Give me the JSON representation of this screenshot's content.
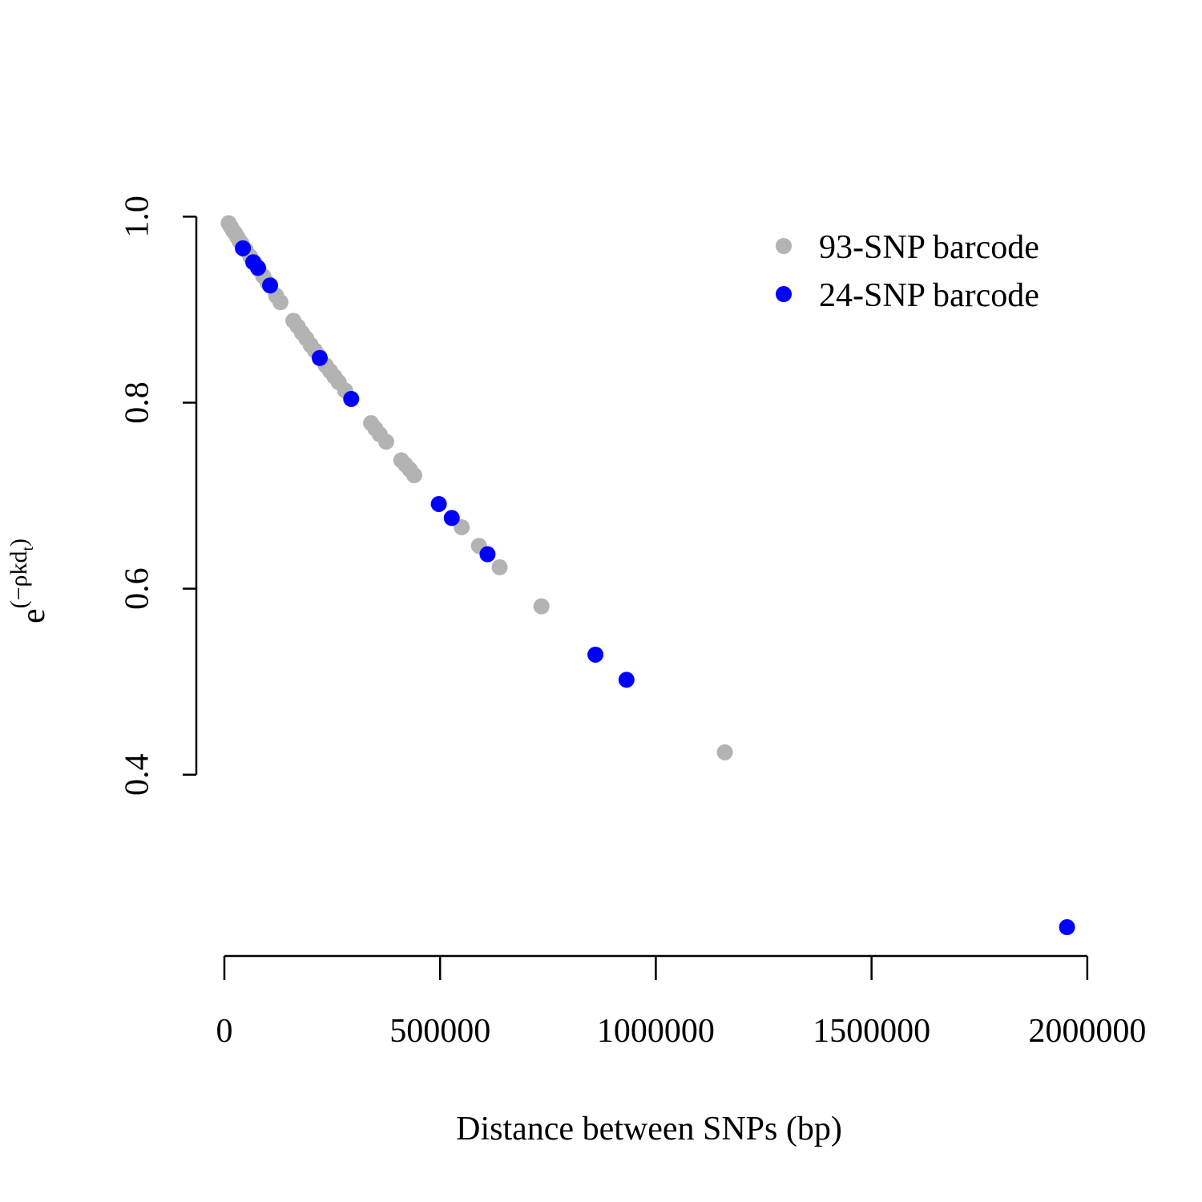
{
  "chart_data": {
    "type": "scatter",
    "y_label": [
      "e",
      "(−ρkd",
      "t",
      ")"
    ],
    "x_label": "Distance between SNPs (bp)",
    "xlim": [
      -65000,
      2030000
    ],
    "ylim": [
      0.205,
      1.021
    ],
    "xticks": [
      0,
      500000,
      1000000,
      1500000,
      2000000
    ],
    "yticks": [
      0.4,
      0.6,
      0.8,
      {
        "value": 1,
        "label": "1.0"
      }
    ],
    "legend": "topright",
    "series": [
      {
        "name": "93-SNP barcode",
        "color": "#b3b3b3",
        "x": [
          10000,
          15000,
          20000,
          25000,
          30000,
          35000,
          40000,
          50000,
          60000,
          70000,
          80000,
          90000,
          100000,
          120000,
          130000,
          160000,
          170000,
          180000,
          190000,
          200000,
          210000,
          220000,
          235000,
          245000,
          255000,
          265000,
          280000,
          340000,
          350000,
          360000,
          375000,
          410000,
          420000,
          430000,
          440000,
          550000,
          590000,
          638000,
          735000,
          1160000
        ],
        "values": [
          0.993,
          0.989,
          0.985,
          0.982,
          0.978,
          0.974,
          0.971,
          0.964,
          0.957,
          0.95,
          0.943,
          0.936,
          0.929,
          0.915,
          0.908,
          0.888,
          0.882,
          0.875,
          0.869,
          0.862,
          0.856,
          0.85,
          0.84,
          0.834,
          0.828,
          0.822,
          0.813,
          0.778,
          0.772,
          0.766,
          0.758,
          0.738,
          0.733,
          0.728,
          0.722,
          0.666,
          0.646,
          0.623,
          0.581,
          0.424
        ]
      },
      {
        "name": "24-SNP barcode",
        "color": "#0000ff",
        "x": [
          43000,
          67000,
          78000,
          106000,
          221000,
          294000,
          497000,
          527000,
          610000,
          860000,
          932000,
          1953000
        ],
        "values": [
          0.966,
          0.951,
          0.945,
          0.926,
          0.848,
          0.804,
          0.691,
          0.676,
          0.637,
          0.529,
          0.502,
          0.236
        ]
      }
    ]
  }
}
